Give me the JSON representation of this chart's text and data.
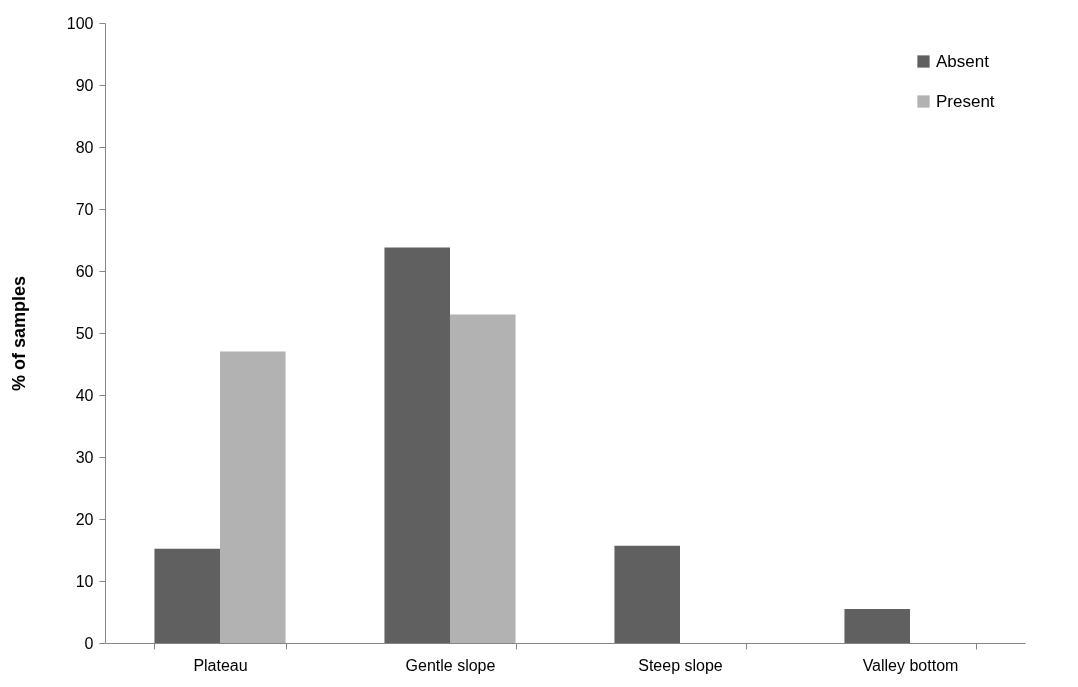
{
  "chart_data": {
    "type": "bar",
    "ylabel": "% of samples",
    "categories": [
      "Plateau",
      "Gentle slope",
      "Steep slope",
      "Valley bottom"
    ],
    "series": [
      {
        "name": "Absent",
        "color": "#606060",
        "values": [
          15.2,
          63.8,
          15.7,
          5.5
        ]
      },
      {
        "name": "Present",
        "color": "#b2b2b2",
        "values": [
          47,
          53,
          0,
          0
        ]
      }
    ],
    "ylim": [
      0,
      100
    ],
    "yticks": [
      0,
      10,
      20,
      30,
      40,
      50,
      60,
      70,
      80,
      90,
      100
    ],
    "grid": false,
    "legend": "top right"
  }
}
